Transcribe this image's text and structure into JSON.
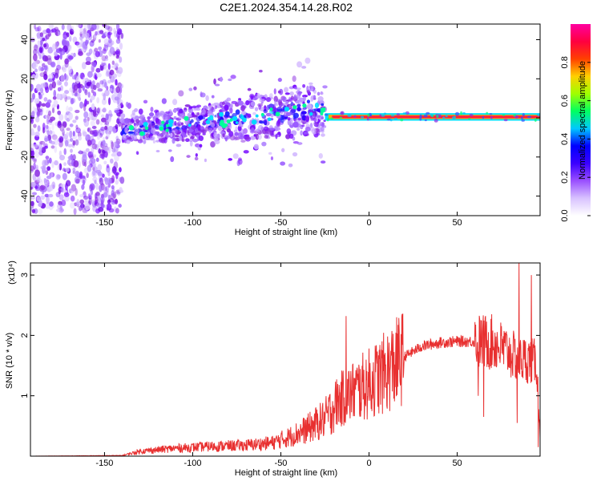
{
  "title": "C2E1.2024.354.14.28.R02",
  "colors": {
    "background": "#ffffff",
    "snr_line": "#e83030",
    "noise_scatter": "#8a2be2",
    "signal_band": "#ff2a2a",
    "signal_band_edge": "#00d0ff"
  },
  "chart_data": [
    {
      "type": "heatmap",
      "title": "",
      "xlabel": "Height of straight line (km)",
      "ylabel": "Frequency (Hz)",
      "xlim": [
        -192,
        97
      ],
      "ylim": [
        -50,
        48
      ],
      "x_ticks": [
        -150,
        -100,
        -50,
        0,
        50
      ],
      "y_ticks": [
        -40,
        -20,
        0,
        20,
        40
      ],
      "grid": false,
      "colorbar": {
        "label": "Normalized spectral amplitude",
        "range": [
          0.0,
          1.0
        ],
        "ticks": [
          "0.0",
          "0.2",
          "0.4",
          "0.6",
          "0.8"
        ],
        "stops": [
          "#ffffff",
          "#d8c2ff",
          "#9a50ff",
          "#3b00ff",
          "#0000ff",
          "#00c8ff",
          "#00ff60",
          "#a0ff00",
          "#ffd000",
          "#ff4000",
          "#ff0040",
          "#ff00a0"
        ]
      },
      "regions": [
        {
          "name": "noise",
          "x_range": [
            -192,
            -140
          ],
          "freq_range": [
            -48,
            48
          ],
          "amplitude": 0.15
        },
        {
          "name": "weak echo",
          "x_range": [
            -140,
            -25
          ],
          "freq_center_at_start": -7,
          "freq_center_at_end": 5,
          "half_width": 10,
          "amplitude": 0.35
        },
        {
          "name": "strong echo",
          "x_range": [
            -25,
            97
          ],
          "freq_center": 0.5,
          "half_width": 1.5,
          "amplitude": 0.95
        }
      ]
    },
    {
      "type": "line",
      "title": "",
      "xlabel": "Height of straight line (km)",
      "ylabel": "SNR (10 * v/v)",
      "multiplier": "(x10⁴)",
      "xlim": [
        -192,
        97
      ],
      "ylim": [
        0,
        3.2
      ],
      "x_ticks": [
        -150,
        -100,
        -50,
        0,
        50
      ],
      "y_ticks": [
        1,
        2,
        3
      ],
      "grid": false,
      "series": [
        {
          "color": "#e83030",
          "envelope": {
            "x": [
              -192,
              -140,
              -130,
              -110,
              -90,
              -70,
              -55,
              -45,
              -35,
              -25,
              -18,
              -10,
              0,
              10,
              20,
              30,
              40,
              50,
              60,
              70,
              75,
              80,
              85,
              90,
              95,
              97
            ],
            "y": [
              0.0,
              0.01,
              0.08,
              0.13,
              0.16,
              0.18,
              0.22,
              0.32,
              0.45,
              0.62,
              0.9,
              1.05,
              1.2,
              1.4,
              1.65,
              1.82,
              1.88,
              1.9,
              1.9,
              1.88,
              1.8,
              1.7,
              1.6,
              1.6,
              1.55,
              0.4
            ]
          },
          "spikes": [
            {
              "x": -13,
              "y": 2.32
            },
            {
              "x": 62,
              "y": 1.0
            },
            {
              "x": 65,
              "y": 0.65
            },
            {
              "x": 85,
              "y": 3.2
            },
            {
              "x": 84,
              "y": 0.55
            },
            {
              "x": 92,
              "y": 3.0
            },
            {
              "x": 96,
              "y": 0.15
            }
          ]
        }
      ]
    }
  ]
}
